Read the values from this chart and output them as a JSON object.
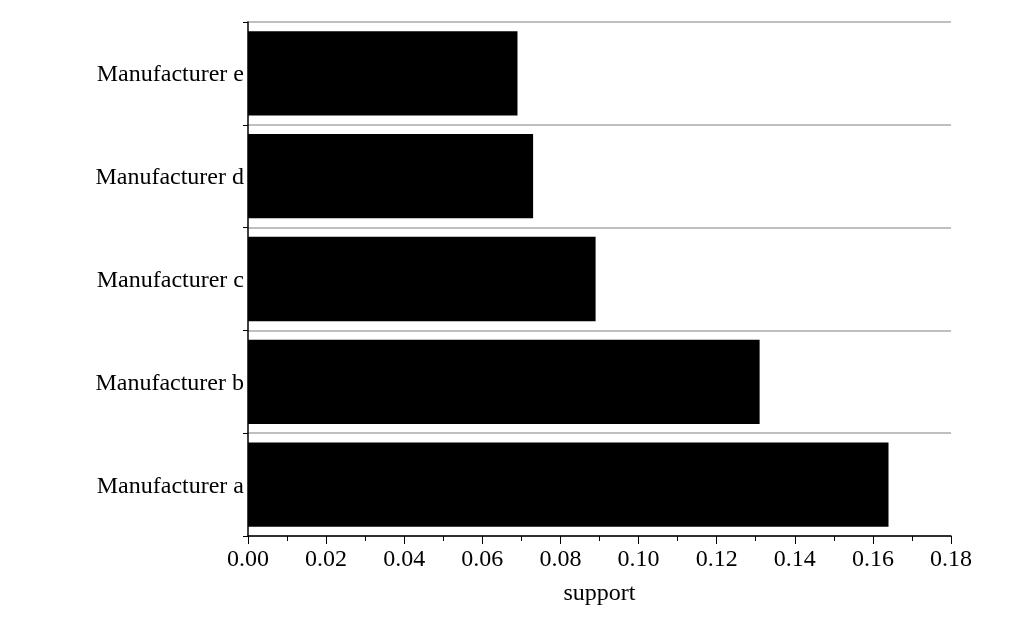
{
  "chart_data": {
    "type": "bar",
    "orientation": "horizontal",
    "xlabel": "support",
    "categories": [
      "Manufacturer e",
      "Manufacturer d",
      "Manufacturer c",
      "Manufacturer b",
      "Manufacturer a"
    ],
    "values": [
      0.069,
      0.073,
      0.089,
      0.131,
      0.164
    ],
    "color": "#000000",
    "xlim": [
      0,
      0.18
    ],
    "xticks": [
      {
        "value": 0,
        "label": "0.00"
      },
      {
        "value": 0.02,
        "label": "0.02"
      },
      {
        "value": 0.04,
        "label": "0.04"
      },
      {
        "value": 0.06,
        "label": "0.06"
      },
      {
        "value": 0.08,
        "label": "0.08"
      },
      {
        "value": 0.1,
        "label": "0.10"
      },
      {
        "value": 0.12,
        "label": "0.12"
      },
      {
        "value": 0.14,
        "label": "0.14"
      },
      {
        "value": 0.16,
        "label": "0.16"
      },
      {
        "value": 0.18,
        "label": "0.18"
      }
    ],
    "grid": "y"
  }
}
